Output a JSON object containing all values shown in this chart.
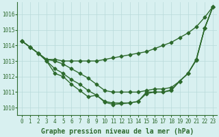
{
  "xlabel": "Graphe pression niveau de la mer (hPa)",
  "x": [
    0,
    1,
    2,
    3,
    4,
    5,
    6,
    7,
    8,
    9,
    10,
    11,
    12,
    13,
    14,
    15,
    16,
    17,
    18,
    19,
    20,
    21,
    22,
    23
  ],
  "line1": [
    1014.3,
    1013.9,
    1013.5,
    1013.1,
    1013.1,
    1013.0,
    1013.0,
    1013.0,
    1013.0,
    1013.0,
    1013.1,
    1013.2,
    1013.3,
    1013.4,
    1013.5,
    1013.6,
    1013.8,
    1014.0,
    1014.2,
    1014.5,
    1014.8,
    1015.2,
    1015.8,
    1016.5
  ],
  "line2": [
    1014.3,
    1013.9,
    1013.5,
    1013.1,
    1013.0,
    1012.8,
    1012.5,
    1012.2,
    1011.9,
    1011.5,
    1011.1,
    1011.0,
    1011.0,
    1011.0,
    1011.0,
    1011.1,
    1011.2,
    1011.2,
    1011.3,
    1011.7,
    1012.2,
    1013.1,
    1015.1,
    1016.5
  ],
  "line3": [
    1014.3,
    1013.9,
    1013.5,
    1013.0,
    1012.5,
    1012.2,
    1011.8,
    1011.5,
    1011.1,
    1010.8,
    1010.4,
    1010.3,
    1010.3,
    1010.3,
    1010.4,
    1010.9,
    1011.0,
    1011.0,
    1011.1,
    1011.7,
    1012.2,
    1013.1,
    1015.1,
    1016.5
  ],
  "line4": [
    1014.3,
    1013.9,
    1013.5,
    1013.0,
    1012.2,
    1012.0,
    1011.5,
    1011.1,
    1010.7,
    1010.8,
    1010.35,
    1010.2,
    1010.25,
    1010.3,
    1010.4,
    1011.0,
    1011.0,
    1011.0,
    1011.15,
    1011.7,
    1012.2,
    1013.05,
    1015.1,
    1016.5
  ],
  "line_color": "#2d6a2d",
  "bg_color": "#d8f0f0",
  "grid_color": "#b8dada",
  "ylim": [
    1009.5,
    1016.8
  ],
  "xlim": [
    -0.5,
    23.5
  ],
  "marker": "D",
  "markersize": 2.5,
  "linewidth": 1.0,
  "xlabel_fontsize": 7,
  "tick_fontsize": 5.5
}
